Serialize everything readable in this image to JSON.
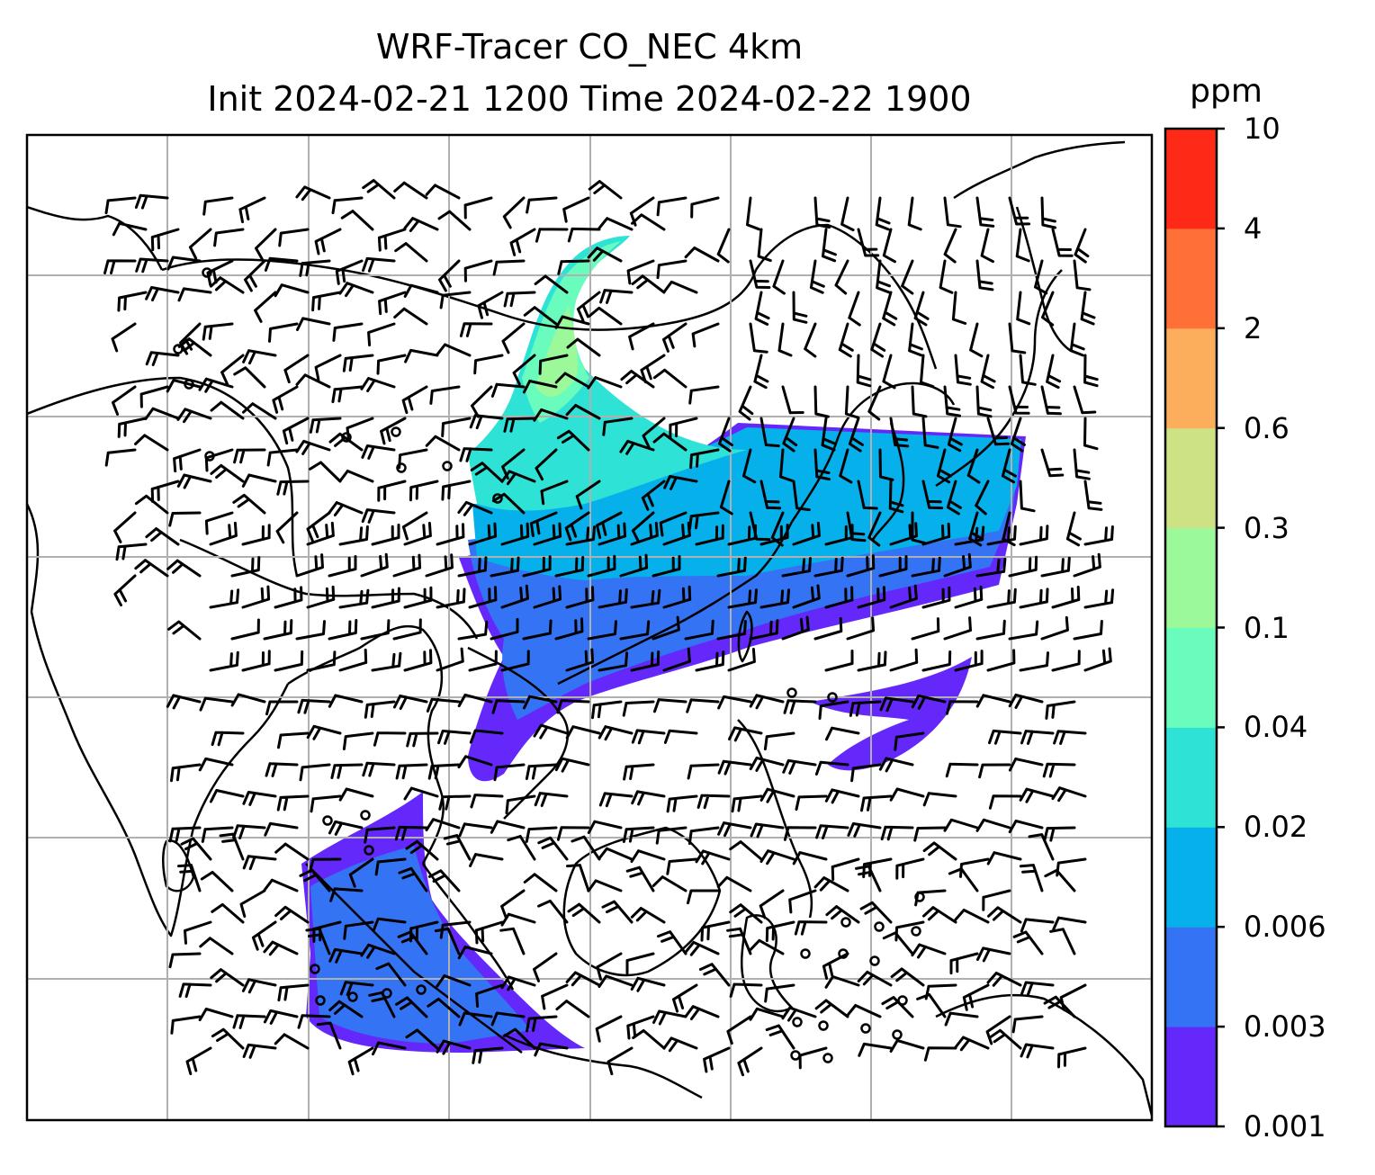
{
  "title_line1": "WRF-Tracer CO_NEC 4km",
  "title_line2": "Init 2024-02-21 1200 Time 2024-02-22 1900",
  "colorbar": {
    "unit": "ppm",
    "levels": [
      "0.001",
      "0.003",
      "0.006",
      "0.02",
      "0.04",
      "0.1",
      "0.3",
      "0.6",
      "2",
      "4",
      "10"
    ],
    "colors": [
      "#6428fa",
      "#3473f4",
      "#06b0ea",
      "#2ee2d6",
      "#6afcbc",
      "#9cf999",
      "#cde285",
      "#fcae5d",
      "#ff7038",
      "#fe2a17"
    ]
  },
  "map": {
    "gridlines": true,
    "overlay": "wind barbs",
    "coastline_color": "#000000",
    "grid_color": "#b0b0b0"
  }
}
